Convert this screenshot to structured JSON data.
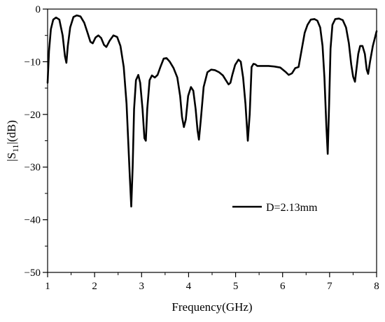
{
  "chart_data": {
    "type": "line",
    "xlabel": "Frequency(GHz)",
    "ylabel_parts": {
      "prefix": "|S",
      "subscript": "11",
      "suffix": "|(dB)"
    },
    "xlim": [
      1,
      8
    ],
    "ylim": [
      -50,
      0
    ],
    "x_ticks": [
      1,
      2,
      3,
      4,
      5,
      6,
      7,
      8
    ],
    "y_ticks": [
      0,
      -10,
      -20,
      -30,
      -40,
      -50
    ],
    "x_minor_step": 0.5,
    "y_minor_step": 5,
    "grid": false,
    "legend_position": "middle-right",
    "line_color": "#000000",
    "series": [
      {
        "name": "D=2.13mm",
        "x": [
          1.0,
          1.03,
          1.07,
          1.12,
          1.18,
          1.25,
          1.32,
          1.37,
          1.4,
          1.43,
          1.48,
          1.55,
          1.62,
          1.7,
          1.78,
          1.85,
          1.91,
          1.96,
          2.02,
          2.08,
          2.14,
          2.2,
          2.25,
          2.32,
          2.4,
          2.48,
          2.55,
          2.62,
          2.68,
          2.72,
          2.75,
          2.78,
          2.81,
          2.84,
          2.88,
          2.93,
          2.97,
          3.02,
          3.06,
          3.09,
          3.12,
          3.17,
          3.22,
          3.28,
          3.34,
          3.4,
          3.47,
          3.53,
          3.6,
          3.68,
          3.76,
          3.82,
          3.86,
          3.9,
          3.94,
          3.99,
          4.05,
          4.1,
          4.15,
          4.19,
          4.22,
          4.26,
          4.32,
          4.4,
          4.48,
          4.56,
          4.65,
          4.73,
          4.8,
          4.85,
          4.89,
          4.93,
          4.99,
          5.06,
          5.11,
          5.16,
          5.21,
          5.26,
          5.3,
          5.34,
          5.38,
          5.42,
          5.46,
          5.52,
          5.6,
          5.7,
          5.82,
          5.95,
          6.06,
          6.13,
          6.2,
          6.27,
          6.34,
          6.4,
          6.47,
          6.53,
          6.6,
          6.68,
          6.74,
          6.8,
          6.85,
          6.89,
          6.93,
          6.96,
          6.99,
          7.02,
          7.06,
          7.12,
          7.2,
          7.28,
          7.35,
          7.41,
          7.46,
          7.5,
          7.54,
          7.57,
          7.61,
          7.65,
          7.7,
          7.75,
          7.79,
          7.82,
          7.86,
          7.92,
          8.0
        ],
        "y": [
          -14.0,
          -8.0,
          -3.8,
          -2.0,
          -1.6,
          -2.0,
          -5.0,
          -9.0,
          -10.2,
          -7.0,
          -3.5,
          -1.5,
          -1.2,
          -1.4,
          -2.6,
          -4.5,
          -6.2,
          -6.5,
          -5.4,
          -5.0,
          -5.5,
          -6.8,
          -7.2,
          -6.0,
          -5.0,
          -5.3,
          -7.0,
          -11.0,
          -18.0,
          -26.0,
          -32.0,
          -37.5,
          -30.0,
          -19.0,
          -13.5,
          -12.5,
          -14.0,
          -19.0,
          -24.5,
          -25.0,
          -19.0,
          -13.5,
          -12.6,
          -13.0,
          -12.5,
          -11.0,
          -9.4,
          -9.3,
          -10.0,
          -11.2,
          -13.0,
          -16.5,
          -20.5,
          -22.4,
          -21.0,
          -16.5,
          -14.8,
          -15.5,
          -19.0,
          -23.0,
          -24.8,
          -21.0,
          -14.8,
          -12.0,
          -11.5,
          -11.6,
          -12.0,
          -12.6,
          -13.6,
          -14.3,
          -14.0,
          -12.5,
          -10.6,
          -9.6,
          -10.0,
          -13.0,
          -18.0,
          -25.0,
          -20.0,
          -11.0,
          -10.4,
          -10.5,
          -10.8,
          -10.8,
          -10.8,
          -10.8,
          -10.9,
          -11.1,
          -11.9,
          -12.5,
          -12.2,
          -11.2,
          -11.0,
          -8.0,
          -4.5,
          -3.0,
          -2.0,
          -1.9,
          -2.2,
          -3.5,
          -7.0,
          -13.0,
          -22.0,
          -27.5,
          -18.0,
          -7.5,
          -3.0,
          -1.9,
          -1.8,
          -2.1,
          -3.5,
          -6.5,
          -10.5,
          -12.8,
          -13.8,
          -11.5,
          -8.5,
          -7.0,
          -7.0,
          -8.5,
          -11.5,
          -12.3,
          -10.0,
          -7.0,
          -4.2
        ]
      }
    ],
    "legend_label": "D=2.13mm"
  }
}
